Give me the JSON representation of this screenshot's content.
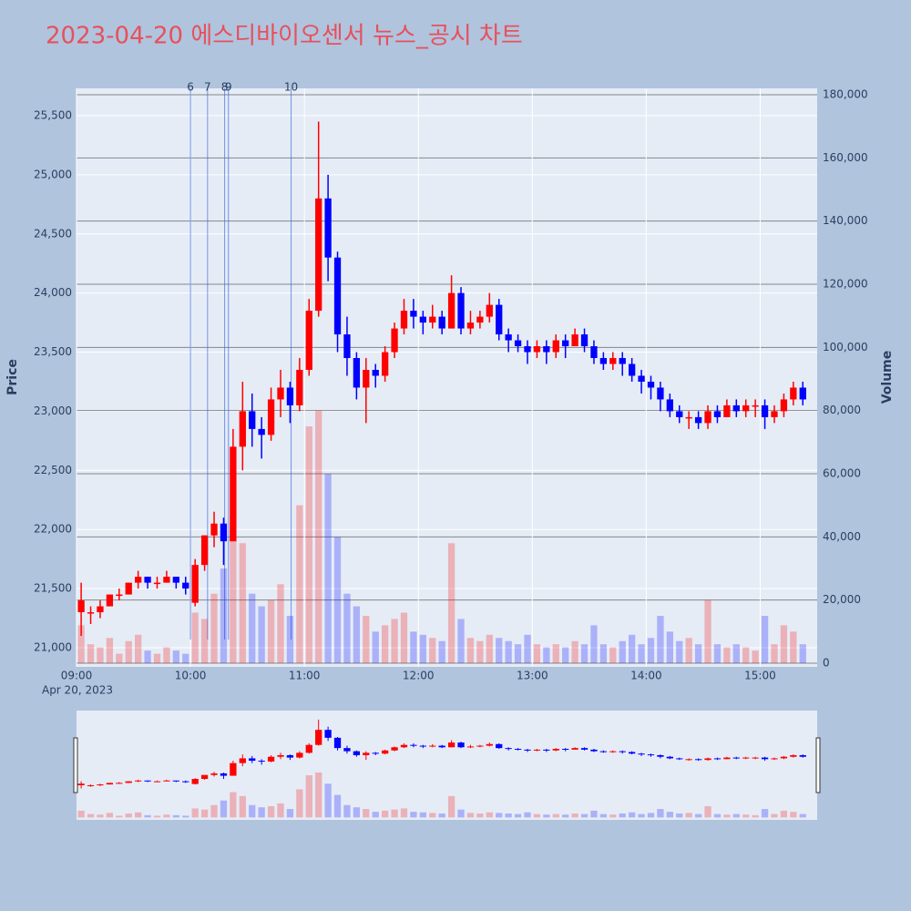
{
  "chart_data": {
    "type": "candlestick",
    "title": "2023-04-20 에스디바이오센서 뉴스_공시 차트",
    "y_label": "Price",
    "y2_label": "Volume",
    "x_date_label": "Apr 20, 2023",
    "increasing_color": "#ff0000",
    "decreasing_color": "#0000ff",
    "xlim": [
      "2023-04-20 09:00",
      "2023-04-20 15:30"
    ],
    "xticks": [
      {
        "value": "2023-04-20 09:00",
        "label": "09:00"
      },
      {
        "value": "2023-04-20 10:00",
        "label": "10:00"
      },
      {
        "value": "2023-04-20 11:00",
        "label": "11:00"
      },
      {
        "value": "2023-04-20 12:00",
        "label": "12:00"
      },
      {
        "value": "2023-04-20 13:00",
        "label": "13:00"
      },
      {
        "value": "2023-04-20 14:00",
        "label": "14:00"
      },
      {
        "value": "2023-04-20 15:00",
        "label": "15:00"
      }
    ],
    "ylim": [
      20838,
      25731
    ],
    "yticks": [
      {
        "value": 21000,
        "label": "21,000"
      },
      {
        "value": 21500,
        "label": "21,500"
      },
      {
        "value": 22000,
        "label": "22,000"
      },
      {
        "value": 22500,
        "label": "22,500"
      },
      {
        "value": 23000,
        "label": "23,000"
      },
      {
        "value": 23500,
        "label": "23,500"
      },
      {
        "value": 24000,
        "label": "24,000"
      },
      {
        "value": 24500,
        "label": "24,500"
      },
      {
        "value": 25000,
        "label": "25,000"
      },
      {
        "value": 25500,
        "label": "25,500"
      }
    ],
    "y2lim": [
      -1154,
      182019
    ],
    "y2ticks": [
      0,
      {
        "value": 20000,
        "label": "20,000"
      },
      {
        "value": 40000,
        "label": "40,000"
      },
      {
        "value": 60000,
        "label": "60,000"
      },
      {
        "value": 80000,
        "label": "80,000"
      },
      {
        "value": 100000,
        "label": "100,000"
      },
      {
        "value": 120000,
        "label": "120,000"
      },
      {
        "value": 140000,
        "label": "140,000"
      },
      {
        "value": 160000,
        "label": "160,000"
      },
      {
        "value": 180000,
        "label": "180,000"
      }
    ],
    "grid": true,
    "annotations": [
      {
        "x": "2023-04-20 10:00",
        "label": "6"
      },
      {
        "x": "2023-04-20 10:09",
        "label": "7"
      },
      {
        "x": "2023-04-20 10:18",
        "label": "8"
      },
      {
        "x": "2023-04-20 10:20",
        "label": "9"
      },
      {
        "x": "2023-04-20 10:53",
        "label": "10"
      }
    ],
    "x": [
      "2023-04-20 09:00",
      "2023-04-20 09:05",
      "2023-04-20 09:10",
      "2023-04-20 09:15",
      "2023-04-20 09:20",
      "2023-04-20 09:25",
      "2023-04-20 09:30",
      "2023-04-20 09:35",
      "2023-04-20 09:40",
      "2023-04-20 09:45",
      "2023-04-20 09:50",
      "2023-04-20 09:55",
      "2023-04-20 10:00",
      "2023-04-20 10:05",
      "2023-04-20 10:10",
      "2023-04-20 10:15",
      "2023-04-20 10:20",
      "2023-04-20 10:25",
      "2023-04-20 10:30",
      "2023-04-20 10:35",
      "2023-04-20 10:40",
      "2023-04-20 10:45",
      "2023-04-20 10:50",
      "2023-04-20 10:55",
      "2023-04-20 11:00",
      "2023-04-20 11:05",
      "2023-04-20 11:10",
      "2023-04-20 11:15",
      "2023-04-20 11:20",
      "2023-04-20 11:25",
      "2023-04-20 11:30",
      "2023-04-20 11:35",
      "2023-04-20 11:40",
      "2023-04-20 11:45",
      "2023-04-20 11:50",
      "2023-04-20 11:55",
      "2023-04-20 12:00",
      "2023-04-20 12:05",
      "2023-04-20 12:10",
      "2023-04-20 12:15",
      "2023-04-20 12:20",
      "2023-04-20 12:25",
      "2023-04-20 12:30",
      "2023-04-20 12:35",
      "2023-04-20 12:40",
      "2023-04-20 12:45",
      "2023-04-20 12:50",
      "2023-04-20 12:55",
      "2023-04-20 13:00",
      "2023-04-20 13:05",
      "2023-04-20 13:10",
      "2023-04-20 13:15",
      "2023-04-20 13:20",
      "2023-04-20 13:25",
      "2023-04-20 13:30",
      "2023-04-20 13:35",
      "2023-04-20 13:40",
      "2023-04-20 13:45",
      "2023-04-20 13:50",
      "2023-04-20 13:55",
      "2023-04-20 14:00",
      "2023-04-20 14:05",
      "2023-04-20 14:10",
      "2023-04-20 14:15",
      "2023-04-20 14:20",
      "2023-04-20 14:25",
      "2023-04-20 14:30",
      "2023-04-20 14:35",
      "2023-04-20 14:40",
      "2023-04-20 14:45",
      "2023-04-20 14:50",
      "2023-04-20 14:55",
      "2023-04-20 15:00",
      "2023-04-20 15:05",
      "2023-04-20 15:10",
      "2023-04-20 15:15",
      "2023-04-20 15:20"
    ],
    "open": [
      21300,
      21300,
      21300,
      21350,
      21450,
      21450,
      21550,
      21600,
      21550,
      21550,
      21600,
      21550,
      21380,
      21700,
      21950,
      22050,
      21900,
      22700,
      23000,
      22850,
      22800,
      23100,
      23200,
      23050,
      23350,
      23850,
      24800,
      24300,
      23650,
      23450,
      23200,
      23350,
      23300,
      23500,
      23700,
      23850,
      23800,
      23750,
      23800,
      23700,
      24000,
      23700,
      23750,
      23800,
      23900,
      23650,
      23600,
      23550,
      23500,
      23550,
      23500,
      23600,
      23550,
      23650,
      23550,
      23450,
      23400,
      23450,
      23400,
      23300,
      23250,
      23200,
      23100,
      23000,
      22950,
      22950,
      22900,
      23000,
      22950,
      23050,
      23000,
      23050,
      23050,
      22950,
      23000,
      23100,
      23200
    ],
    "high": [
      21550,
      21350,
      21400,
      21450,
      21500,
      21550,
      21650,
      21600,
      21600,
      21650,
      21600,
      21600,
      21750,
      21950,
      22150,
      22100,
      22850,
      23250,
      23150,
      22950,
      23200,
      23350,
      23250,
      23450,
      23950,
      25450,
      25000,
      24350,
      23800,
      23500,
      23450,
      23400,
      23550,
      23750,
      23950,
      23950,
      23850,
      23900,
      23850,
      24150,
      24050,
      23850,
      23850,
      24000,
      23950,
      23700,
      23650,
      23600,
      23600,
      23600,
      23650,
      23650,
      23700,
      23700,
      23600,
      23500,
      23500,
      23500,
      23450,
      23350,
      23300,
      23250,
      23150,
      23050,
      23000,
      23000,
      23050,
      23050,
      23100,
      23100,
      23100,
      23100,
      23100,
      23050,
      23150,
      23250,
      23250
    ],
    "low": [
      21100,
      21200,
      21250,
      21350,
      21400,
      21450,
      21500,
      21500,
      21500,
      21550,
      21500,
      21450,
      21350,
      21650,
      21850,
      21700,
      21900,
      22500,
      22700,
      22600,
      22750,
      22950,
      22900,
      23000,
      23300,
      23800,
      24100,
      23500,
      23300,
      23100,
      22900,
      23200,
      23250,
      23450,
      23650,
      23700,
      23650,
      23700,
      23650,
      23700,
      23650,
      23650,
      23700,
      23750,
      23600,
      23500,
      23500,
      23400,
      23450,
      23400,
      23450,
      23450,
      23550,
      23500,
      23400,
      23350,
      23350,
      23300,
      23250,
      23150,
      23100,
      23000,
      22950,
      22900,
      22850,
      22850,
      22850,
      22900,
      22950,
      22950,
      22950,
      22950,
      22850,
      22900,
      22950,
      23050,
      23050
    ],
    "close": [
      21400,
      21300,
      21350,
      21450,
      21450,
      21550,
      21600,
      21550,
      21550,
      21600,
      21550,
      21500,
      21700,
      21950,
      22050,
      21900,
      22700,
      23000,
      22850,
      22800,
      23100,
      23200,
      23050,
      23350,
      23850,
      24800,
      24300,
      23650,
      23450,
      23200,
      23350,
      23300,
      23500,
      23700,
      23850,
      23800,
      23750,
      23800,
      23700,
      24000,
      23700,
      23750,
      23800,
      23900,
      23650,
      23600,
      23550,
      23500,
      23550,
      23500,
      23600,
      23550,
      23650,
      23550,
      23450,
      23400,
      23450,
      23400,
      23300,
      23250,
      23200,
      23100,
      23000,
      22950,
      22950,
      22900,
      23000,
      22950,
      23050,
      23000,
      23050,
      23050,
      22950,
      23000,
      23100,
      23200,
      23100
    ],
    "volume": [
      12000,
      6000,
      5000,
      8000,
      3000,
      7000,
      9000,
      4000,
      3000,
      5000,
      4000,
      3000,
      16000,
      14000,
      22000,
      30000,
      45000,
      38000,
      22000,
      18000,
      20000,
      25000,
      15000,
      50000,
      75000,
      80000,
      60000,
      40000,
      22000,
      18000,
      15000,
      10000,
      12000,
      14000,
      16000,
      10000,
      9000,
      8000,
      7000,
      38000,
      14000,
      8000,
      7000,
      9000,
      8000,
      7000,
      6000,
      9000,
      6000,
      5000,
      6000,
      5000,
      7000,
      6000,
      12000,
      6000,
      5000,
      7000,
      9000,
      6000,
      8000,
      15000,
      10000,
      7000,
      8000,
      6000,
      20000,
      6000,
      5000,
      6000,
      5000,
      4000,
      15000,
      6000,
      12000,
      10000,
      6000
    ]
  }
}
